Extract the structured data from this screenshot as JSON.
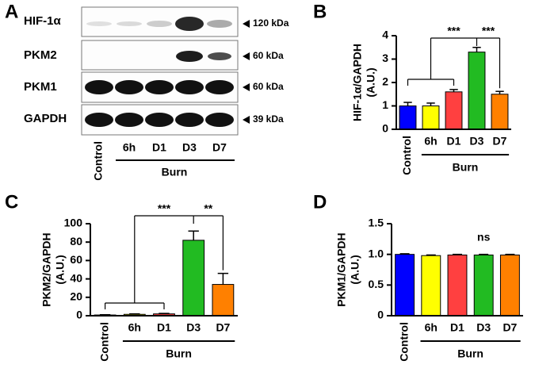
{
  "blot": {
    "panel": "A",
    "rows": [
      {
        "protein": "HIF-1α",
        "size": "120 kDa"
      },
      {
        "protein": "PKM2",
        "size": "60 kDa"
      },
      {
        "protein": "PKM1",
        "size": "60 kDa"
      },
      {
        "protein": "GAPDH",
        "size": "39 kDa"
      }
    ],
    "lanes": [
      "Control",
      "6h",
      "D1",
      "D3",
      "D7"
    ],
    "group": "Burn"
  },
  "chart_data": [
    {
      "type": "bar",
      "panel": "B",
      "ylabel": "HIF-1α/GAPDH",
      "ylabel_unit": "(A.U.)",
      "categories": [
        "Control",
        "6h",
        "D1",
        "D3",
        "D7"
      ],
      "group_label": "Burn",
      "values": [
        1.0,
        1.0,
        1.6,
        3.3,
        1.5
      ],
      "errors": [
        0.15,
        0.12,
        0.1,
        0.2,
        0.12
      ],
      "colors": [
        "#0000ff",
        "#ffff00",
        "#ff4040",
        "#22bb22",
        "#ff8000"
      ],
      "ylim": [
        0,
        4
      ],
      "yticks": [
        0,
        1,
        2,
        3,
        4
      ],
      "annotations": [
        "***",
        "***"
      ]
    },
    {
      "type": "bar",
      "panel": "C",
      "ylabel": "PKM2/GAPDH",
      "ylabel_unit": "(A.U.)",
      "categories": [
        "Control",
        "6h",
        "D1",
        "D3",
        "D7"
      ],
      "group_label": "Burn",
      "values": [
        0.8,
        1.5,
        2,
        82,
        34
      ],
      "errors": [
        0.3,
        0.5,
        0.5,
        10,
        12
      ],
      "colors": [
        "#0000ff",
        "#ffff00",
        "#ff4040",
        "#22bb22",
        "#ff8000"
      ],
      "ylim": [
        0,
        100
      ],
      "yticks": [
        0,
        20,
        40,
        60,
        80,
        100
      ],
      "annotations": [
        "***",
        "**"
      ]
    },
    {
      "type": "bar",
      "panel": "D",
      "ylabel": "PKM1/GAPDH",
      "ylabel_unit": "(A.U.)",
      "categories": [
        "Control",
        "6h",
        "D1",
        "D3",
        "D7"
      ],
      "group_label": "Burn",
      "values": [
        1.0,
        0.98,
        0.99,
        0.99,
        0.99
      ],
      "errors": [
        0.01,
        0.01,
        0.01,
        0.01,
        0.01
      ],
      "colors": [
        "#0000ff",
        "#ffff00",
        "#ff4040",
        "#22bb22",
        "#ff8000"
      ],
      "ylim": [
        0,
        1.5
      ],
      "yticks": [
        0,
        0.5,
        {
          "value": 1,
          "label": "1.0"
        },
        1.5
      ],
      "annotations": [
        "ns"
      ]
    }
  ]
}
